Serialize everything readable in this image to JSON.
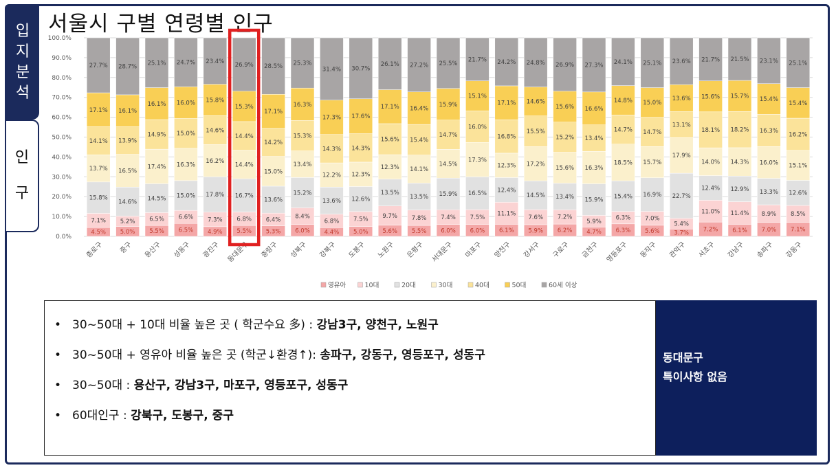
{
  "title": "서울시 구별 연령별 인구",
  "side_tabs": [
    {
      "label": "입지분석",
      "chars": [
        "입",
        "지",
        "분",
        "석"
      ],
      "active": true
    },
    {
      "label": "인구",
      "chars": [
        "인",
        "구"
      ],
      "active": false
    }
  ],
  "colors": {
    "frame": "#1b2a5c",
    "highlight": "#e02020",
    "note_bg": "#0d1f5c",
    "series": [
      "#f4a7a7",
      "#fbd3d3",
      "#e1e1e1",
      "#fbf0cc",
      "#fbe39a",
      "#f9cf55",
      "#a8a5a5"
    ]
  },
  "chart_data": {
    "type": "bar",
    "stacked": true,
    "percent": true,
    "categories": [
      "종로구",
      "중구",
      "용산구",
      "성동구",
      "광진구",
      "동대문구",
      "중랑구",
      "성북구",
      "강북구",
      "도봉구",
      "노원구",
      "은평구",
      "서대문구",
      "마포구",
      "양천구",
      "강서구",
      "구로구",
      "금천구",
      "영등포구",
      "동작구",
      "관악구",
      "서초구",
      "강남구",
      "송파구",
      "강동구"
    ],
    "series": [
      {
        "name": "영유아",
        "values": [
          4.5,
          5.0,
          5.5,
          6.5,
          4.9,
          5.5,
          5.3,
          6.0,
          4.4,
          5.0,
          5.6,
          5.5,
          6.0,
          6.0,
          6.1,
          5.9,
          6.2,
          4.7,
          6.3,
          5.6,
          3.7,
          7.2,
          6.1,
          7.0,
          7.1
        ]
      },
      {
        "name": "10대",
        "values": [
          7.1,
          5.2,
          6.5,
          6.6,
          7.3,
          6.8,
          6.4,
          8.4,
          6.8,
          7.5,
          9.7,
          7.8,
          7.4,
          7.5,
          11.1,
          7.6,
          7.2,
          5.9,
          6.3,
          7.0,
          5.4,
          11.0,
          11.4,
          8.9,
          8.5
        ]
      },
      {
        "name": "20대",
        "values": [
          15.8,
          14.6,
          14.5,
          15.0,
          17.8,
          16.7,
          13.6,
          15.2,
          13.6,
          12.6,
          13.5,
          13.5,
          15.9,
          16.5,
          12.4,
          14.5,
          13.4,
          15.9,
          15.4,
          16.9,
          22.7,
          12.4,
          12.9,
          13.3,
          12.6
        ]
      },
      {
        "name": "30대",
        "values": [
          13.7,
          16.5,
          17.4,
          16.3,
          16.2,
          14.4,
          15.0,
          13.4,
          12.2,
          12.3,
          12.3,
          14.1,
          14.5,
          17.3,
          12.3,
          17.2,
          15.6,
          16.3,
          18.5,
          15.7,
          17.9,
          14.0,
          14.3,
          16.0,
          15.1
        ]
      },
      {
        "name": "40대",
        "values": [
          14.1,
          13.9,
          14.9,
          15.0,
          14.6,
          14.4,
          14.2,
          15.3,
          14.3,
          14.3,
          15.6,
          15.4,
          14.7,
          16.0,
          16.8,
          15.5,
          15.2,
          13.4,
          14.7,
          14.7,
          13.1,
          18.1,
          18.2,
          16.3,
          16.2
        ]
      },
      {
        "name": "50대",
        "values": [
          17.1,
          16.1,
          16.1,
          16.0,
          15.8,
          15.3,
          17.1,
          16.3,
          17.3,
          17.6,
          17.1,
          16.4,
          15.9,
          15.1,
          17.1,
          14.6,
          15.6,
          16.6,
          14.8,
          15.0,
          13.6,
          15.6,
          15.7,
          15.4,
          15.4
        ]
      },
      {
        "name": "60세 이상",
        "values": [
          27.7,
          28.7,
          25.1,
          24.7,
          23.4,
          26.9,
          28.5,
          25.3,
          31.4,
          30.7,
          26.1,
          27.2,
          25.5,
          21.7,
          24.2,
          24.8,
          26.9,
          27.3,
          24.1,
          25.1,
          23.6,
          21.7,
          21.5,
          23.1,
          25.1
        ]
      }
    ],
    "yticks": [
      "0.0%",
      "10.0%",
      "20.0%",
      "30.0%",
      "40.0%",
      "50.0%",
      "60.0%",
      "70.0%",
      "80.0%",
      "90.0%",
      "100.0%"
    ],
    "ylim": [
      0,
      100
    ],
    "grid": true,
    "legend": "bottom",
    "highlight_category": "동대문구"
  },
  "bullets": [
    {
      "normal": "30~50대 + 10대 비율 높은 곳 ( 학군수요 多) : ",
      "bold": "강남3구, 양천구, 노원구"
    },
    {
      "normal": "30~50대 + 영유아 비율 높은 곳 (학군↓환경↑): ",
      "bold": "송파구, 강동구, 영등포구, 성동구"
    },
    {
      "normal": "30~50대 : ",
      "bold": "용산구, 강남3구, 마포구, 영등포구, 성동구"
    },
    {
      "normal": "60대인구 : ",
      "bold": "강북구, 도봉구, 중구"
    }
  ],
  "note": {
    "line1": "동대문구",
    "line2": "특이사항 없음"
  }
}
